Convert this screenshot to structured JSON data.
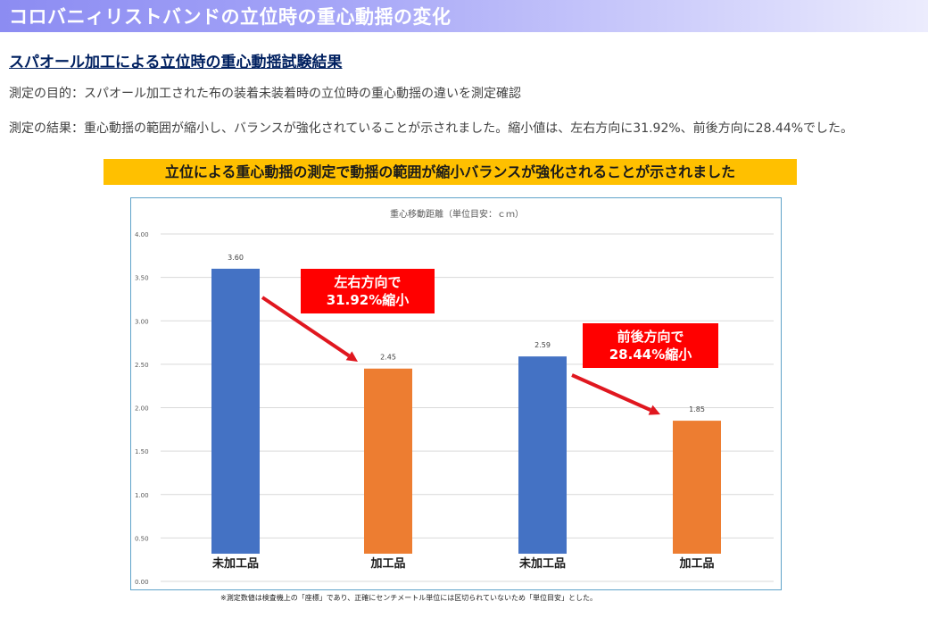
{
  "header": {
    "title": "コロバニィリストバンドの立位時の重心動揺の変化"
  },
  "section": {
    "heading": "スパオール加工による立位時の重心動揺試験結果",
    "purpose": "測定の目的：スパオール加工された布の装着未装着時の立位時の重心動揺の違いを測定確認",
    "result": "測定の結果：重心動揺の範囲が縮小し、バランスが強化されていることが示されました。縮小値は、左右方向に31.92%、前後方向に28.44%でした。"
  },
  "banner": {
    "text": "立位による重心動揺の測定で動揺の範囲が縮小バランスが強化されることが示されました"
  },
  "chart_data": {
    "type": "bar",
    "title": "重心移動距離（単位目安：ｃｍ）",
    "categories": [
      "未加工品",
      "加工品",
      "未加工品",
      "加工品"
    ],
    "values": [
      3.6,
      2.45,
      2.59,
      1.85
    ],
    "value_labels": [
      "3.60",
      "2.45",
      "2.59",
      "1.85"
    ],
    "bar_colors": [
      "#4472c4",
      "#ed7d31",
      "#4472c4",
      "#ed7d31"
    ],
    "ylim": [
      0,
      4
    ],
    "yticks": [
      "0.00",
      "0.50",
      "1.00",
      "1.50",
      "2.00",
      "2.50",
      "3.00",
      "3.50",
      "4.00"
    ],
    "grid": true,
    "annotations": [
      {
        "line1": "左右方向で",
        "line2": "31.92%縮小"
      },
      {
        "line1": "前後方向で",
        "line2": "28.44%縮小"
      }
    ],
    "annotation_color": "#ff0000",
    "arrow_color": "#e0171f"
  },
  "footnote": "※測定数値は検査機上の「座標」であり、正確にセンチメートル単位には区切られていないため「単位目安」とした。"
}
